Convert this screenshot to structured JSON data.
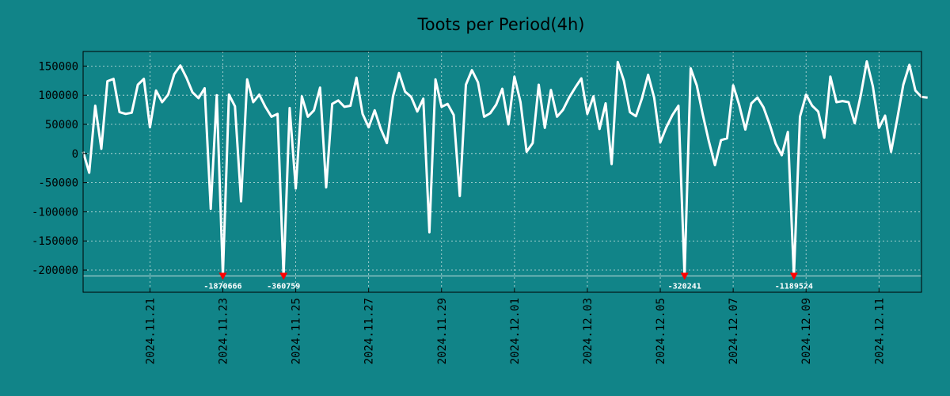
{
  "chart_data": {
    "type": "line",
    "title": "Toots per Period(4h)",
    "xlabel": "",
    "ylabel": "",
    "ylim": [
      -238000,
      175000
    ],
    "xlim": [
      0,
      138
    ],
    "grid": true,
    "y_ticks": [
      {
        "value": 150000,
        "label": "150000"
      },
      {
        "value": 100000,
        "label": "100000"
      },
      {
        "value": 50000,
        "label": "50000"
      },
      {
        "value": 0,
        "label": "0"
      },
      {
        "value": -50000,
        "label": "-50000"
      },
      {
        "value": -100000,
        "label": "-100000"
      },
      {
        "value": -150000,
        "label": "-150000"
      },
      {
        "value": -200000,
        "label": "-200000"
      }
    ],
    "x_ticks": [
      {
        "index": 11,
        "label": "2024.11.21"
      },
      {
        "index": 23,
        "label": "2024.11.23"
      },
      {
        "index": 35,
        "label": "2024.11.25"
      },
      {
        "index": 47,
        "label": "2024.11.27"
      },
      {
        "index": 59,
        "label": "2024.11.29"
      },
      {
        "index": 71,
        "label": "2024.12.01"
      },
      {
        "index": 83,
        "label": "2024.12.03"
      },
      {
        "index": 95,
        "label": "2024.12.05"
      },
      {
        "index": 107,
        "label": "2024.12.07"
      },
      {
        "index": 119,
        "label": "2024.12.09"
      },
      {
        "index": 131,
        "label": "2024.12.11"
      }
    ],
    "clip_value": -210000,
    "series": [
      {
        "name": "toots",
        "color": "#ffffff",
        "values": [
          3000,
          -33000,
          82000,
          8000,
          124000,
          128000,
          71000,
          68000,
          70000,
          118000,
          128000,
          45000,
          108000,
          88000,
          101000,
          136000,
          151000,
          130000,
          105000,
          95000,
          112000,
          -95000,
          100000,
          -210000,
          101000,
          81000,
          -82000,
          127000,
          88000,
          101000,
          80000,
          63000,
          68000,
          -210000,
          78000,
          -60000,
          98000,
          63000,
          74000,
          113000,
          -58000,
          85000,
          91000,
          80000,
          82000,
          130000,
          68000,
          45000,
          74000,
          42000,
          18000,
          98000,
          138000,
          106000,
          97000,
          72000,
          94000,
          -135000,
          127000,
          80000,
          85000,
          66000,
          -73000,
          118000,
          143000,
          122000,
          63000,
          69000,
          84000,
          111000,
          50000,
          132000,
          88000,
          3000,
          18000,
          118000,
          44000,
          109000,
          63000,
          75000,
          96000,
          113000,
          129000,
          68000,
          98000,
          42000,
          86000,
          -18000,
          157000,
          125000,
          71000,
          64000,
          95000,
          135000,
          96000,
          19000,
          45000,
          66000,
          82000,
          -210000,
          146000,
          117000,
          67000,
          21000,
          -20000,
          23000,
          26000,
          117000,
          83000,
          41000,
          86000,
          96000,
          79000,
          50000,
          17000,
          -3000,
          37000,
          -210000,
          63000,
          101000,
          82000,
          72000,
          27000,
          132000,
          88000,
          90000,
          88000,
          52000,
          100000,
          158000,
          115000,
          44000,
          65000,
          3000,
          59000,
          118000,
          152000,
          108000,
          97000,
          96000
        ]
      }
    ],
    "clipped_points": [
      {
        "index": 23,
        "label": "-1870666"
      },
      {
        "index": 33,
        "label": "-360759"
      },
      {
        "index": 99,
        "label": "-320241"
      },
      {
        "index": 117,
        "label": "-1189524"
      }
    ],
    "colors": {
      "background": "#118488",
      "line": "#ffffff",
      "marker": "#ff0000",
      "grid": "#c8e0e0",
      "axis": "#000000"
    }
  }
}
